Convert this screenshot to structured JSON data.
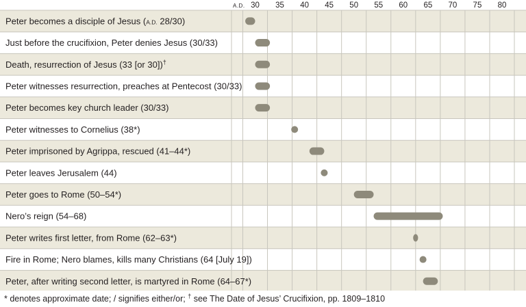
{
  "colors": {
    "row_shade": "#ece9dc",
    "row_plain": "#ffffff",
    "grid": "#c8c6bd",
    "bar": "#8e8a7b"
  },
  "chart_data": {
    "type": "bar",
    "orientation": "horizontal-range",
    "title": "",
    "x_era_label": "A.D.",
    "xlim": [
      25,
      81
    ],
    "x_ticks": [
      30,
      35,
      40,
      45,
      50,
      55,
      60,
      65,
      70,
      75,
      80
    ],
    "x_tick_labels": [
      "30",
      "35",
      "40",
      "45",
      "50",
      "55",
      "60",
      "65",
      "70",
      "75",
      "80"
    ],
    "grid": true,
    "rows": [
      {
        "label": "Peter becomes a disciple of Jesus",
        "era": "A.D.",
        "label_suffix": " 28/30)",
        "start": 28,
        "end": 30
      },
      {
        "label": "Just before the crucifixion, Peter denies Jesus (30/33)",
        "start": 30,
        "end": 33
      },
      {
        "label": "Death, resurrection of Jesus (33 [or 30])",
        "dagger": "†",
        "start": 30,
        "end": 33
      },
      {
        "label": "Peter witnesses resurrection, preaches at Pentecost (30/33)",
        "start": 30,
        "end": 33
      },
      {
        "label": "Peter becomes key church leader (30/33)",
        "start": 30,
        "end": 33
      },
      {
        "label": "Peter witnesses to Cornelius (38*)",
        "start": 38,
        "end": 38
      },
      {
        "label": "Peter imprisoned by Agrippa, rescued (41–44*)",
        "start": 41,
        "end": 44
      },
      {
        "label": "Peter leaves Jerusalem (44)",
        "start": 44,
        "end": 44
      },
      {
        "label": "Peter goes to Rome (50–54*)",
        "start": 50,
        "end": 54
      },
      {
        "label": "Nero’s reign (54–68)",
        "start": 54,
        "end": 68
      },
      {
        "label": "Peter writes first letter, from Rome (62–63*)",
        "start": 62,
        "end": 63
      },
      {
        "label": "Fire in Rome; Nero blames, kills many Christians (64 [July 19])",
        "start": 64,
        "end": 64
      },
      {
        "label": "Peter, after writing second letter, is martyred in Rome (64–67*)",
        "start": 64,
        "end": 67
      }
    ]
  },
  "footnote": {
    "part1": "* denotes approximate date; / signifies either/or; ",
    "dagger": "†",
    "part2": " see The Date of Jesus’ Crucifixion, pp. 1809–1810"
  }
}
